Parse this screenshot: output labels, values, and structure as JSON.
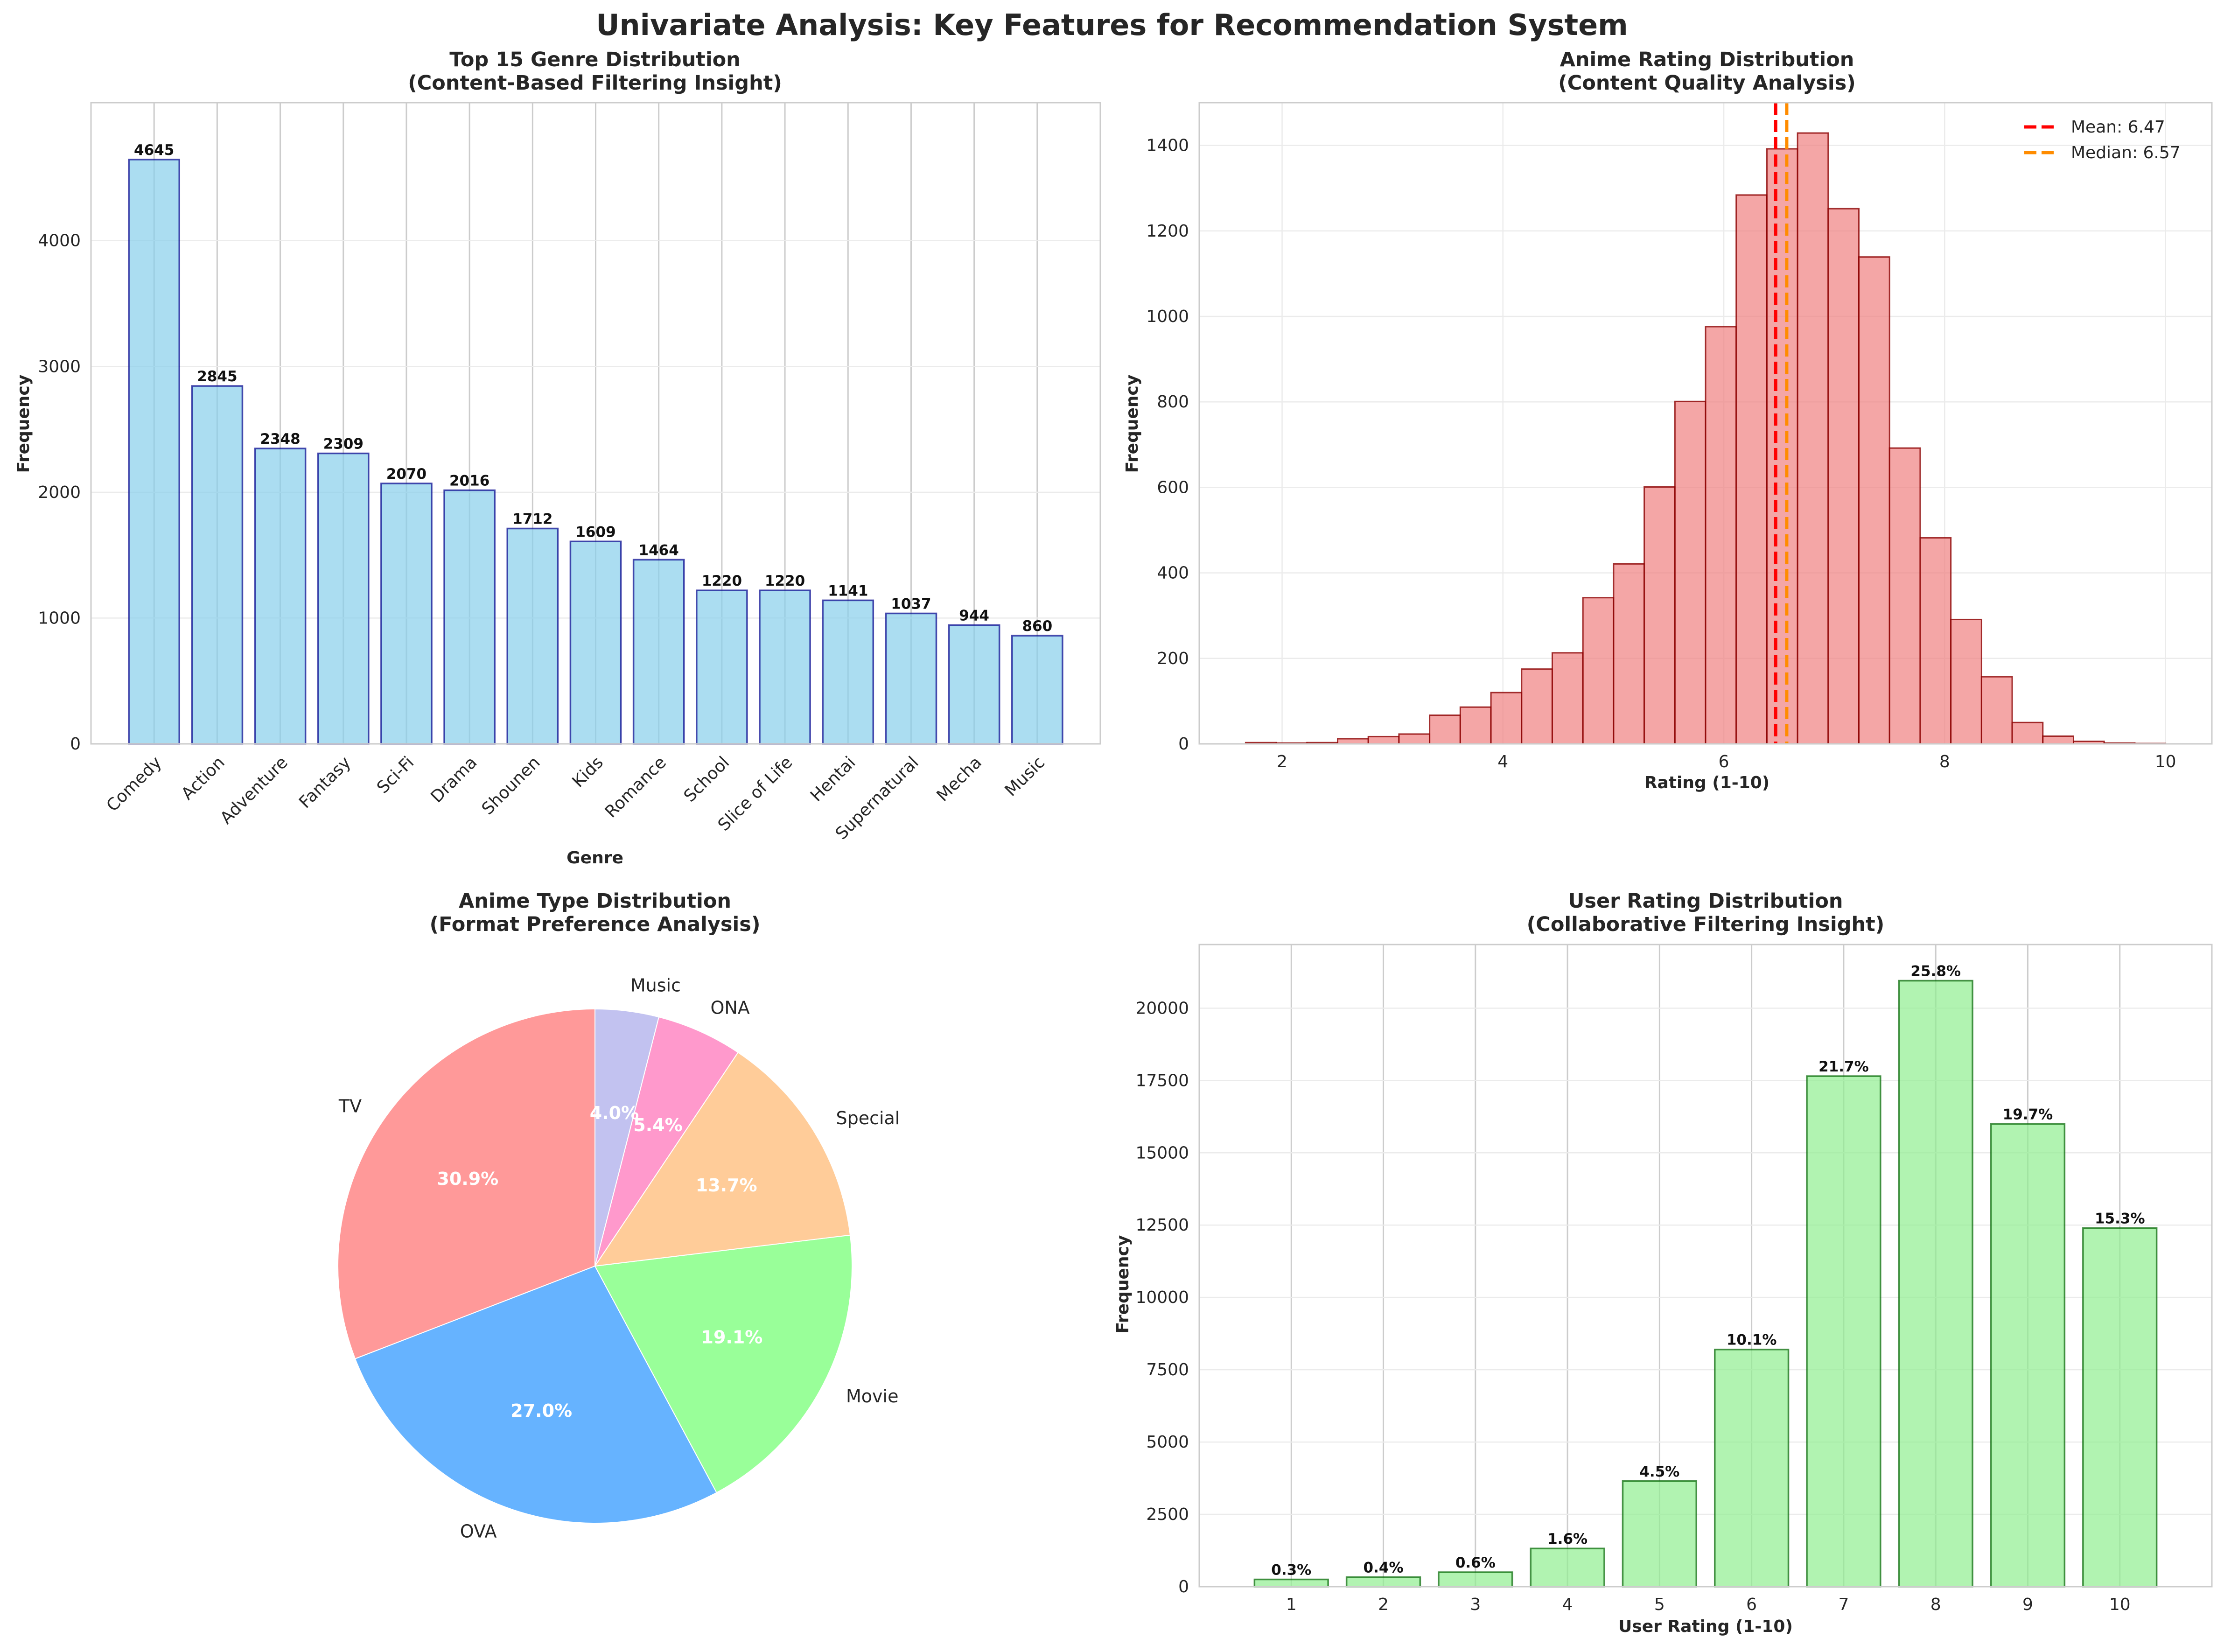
{
  "suptitle": "Univariate Analysis: Key Features for Recommendation System",
  "chart_data": [
    {
      "type": "bar",
      "title_line1": "Top 15 Genre Distribution",
      "title_line2": "(Content-Based Filtering Insight)",
      "xlabel": "Genre",
      "ylabel": "Frequency",
      "categories": [
        "Comedy",
        "Action",
        "Adventure",
        "Fantasy",
        "Sci-Fi",
        "Drama",
        "Shounen",
        "Kids",
        "Romance",
        "School",
        "Slice of Life",
        "Hentai",
        "Supernatural",
        "Mecha",
        "Music"
      ],
      "values": [
        4645,
        2845,
        2348,
        2309,
        2070,
        2016,
        1712,
        1609,
        1464,
        1220,
        1220,
        1141,
        1037,
        944,
        860
      ],
      "ylim": [
        0,
        5097
      ],
      "yticks": [
        "0",
        "1000",
        "2000",
        "3000",
        "4000"
      ],
      "colors": {
        "fill": "#87ceeb",
        "edge": "#00008b"
      },
      "grid": true
    },
    {
      "type": "histogram",
      "title_line1": "Anime Rating Distribution",
      "title_line2": "(Content Quality Analysis)",
      "xlabel": "Rating (1-10)",
      "ylabel": "Frequency",
      "bin_range": [
        1.67,
        10.0
      ],
      "counts": [
        3,
        2,
        3,
        12,
        17,
        23,
        67,
        86,
        120,
        175,
        213,
        342,
        421,
        601,
        801,
        976,
        1284,
        1392,
        1429,
        1252,
        1139,
        692,
        482,
        291,
        157,
        50,
        18,
        6,
        2,
        1
      ],
      "xlim": [
        1.25,
        10.42
      ],
      "ylim": [
        0,
        1500
      ],
      "xticks": [
        "2",
        "4",
        "6",
        "8",
        "10"
      ],
      "yticks": [
        "0",
        "200",
        "400",
        "600",
        "800",
        "1000",
        "1200",
        "1400"
      ],
      "mean": 6.47,
      "median": 6.57,
      "legend": [
        "Mean: 6.47",
        "Median: 6.57"
      ],
      "legend_position": "top-right",
      "colors": {
        "fill": "#f08080",
        "edge": "#8b0000",
        "mean": "#ff0000",
        "median": "#ff8c00"
      },
      "grid": true
    },
    {
      "type": "pie",
      "title_line1": "Anime Type Distribution",
      "title_line2": "(Format Preference Analysis)",
      "labels": [
        "TV",
        "OVA",
        "Movie",
        "Special",
        "ONA",
        "Music"
      ],
      "values": [
        30.9,
        27.0,
        19.1,
        13.7,
        5.4,
        4.0
      ],
      "pct_labels": [
        "30.9%",
        "27.0%",
        "19.1%",
        "13.7%",
        "5.4%",
        "4.0%"
      ],
      "colors": [
        "#ff9999",
        "#66b3ff",
        "#99ff99",
        "#ffcc99",
        "#ff99cc",
        "#c2c2f0"
      ]
    },
    {
      "type": "bar",
      "title_line1": "User Rating Distribution",
      "title_line2": "(Collaborative Filtering Insight)",
      "xlabel": "User Rating (1-10)",
      "ylabel": "Frequency",
      "categories": [
        "1",
        "2",
        "3",
        "4",
        "5",
        "6",
        "7",
        "8",
        "9",
        "10"
      ],
      "values": [
        250,
        330,
        500,
        1320,
        3650,
        8200,
        17650,
        20950,
        16000,
        12400
      ],
      "pct_labels": [
        "0.3%",
        "0.4%",
        "0.6%",
        "1.6%",
        "4.5%",
        "10.1%",
        "21.7%",
        "25.8%",
        "19.7%",
        "15.3%"
      ],
      "ylim": [
        0,
        22200
      ],
      "yticks": [
        "0",
        "2500",
        "5000",
        "7500",
        "10000",
        "12500",
        "15000",
        "17500",
        "20000"
      ],
      "colors": {
        "fill": "#90ee90",
        "edge": "#006400"
      },
      "grid": true
    }
  ]
}
